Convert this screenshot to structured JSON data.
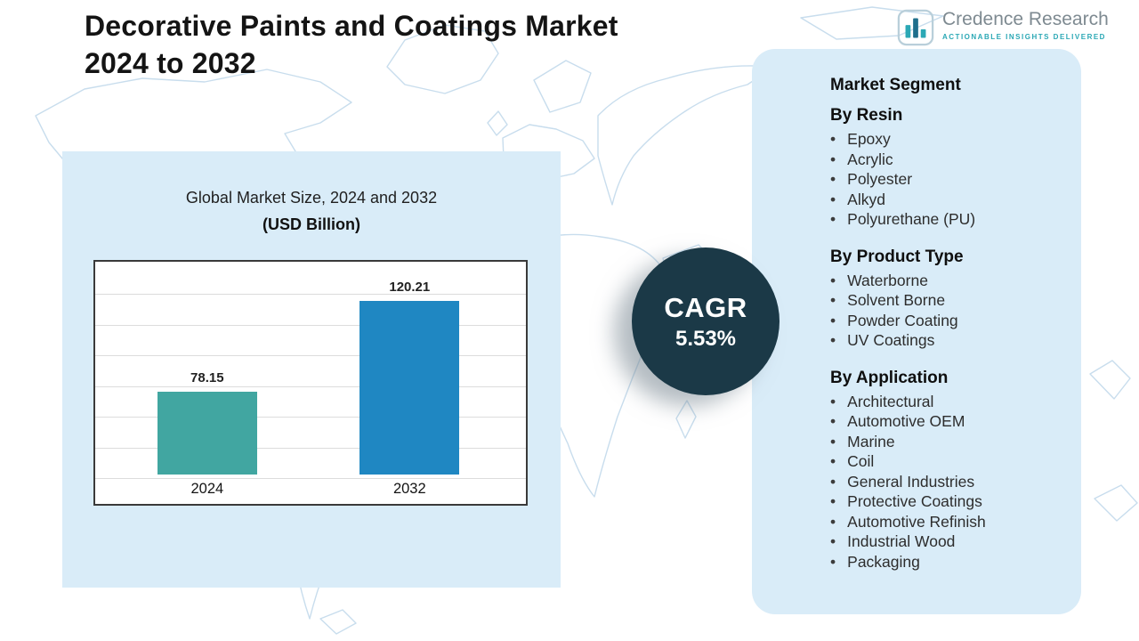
{
  "page": {
    "title_line1": "Decorative Paints and Coatings Market",
    "title_line2": "2024 to 2032"
  },
  "logo": {
    "name": "Credence Research",
    "tagline": "Actionable Insights Delivered",
    "icon": "bar-chart-icon"
  },
  "chart_data": {
    "type": "bar",
    "title": "Global Market Size, 2024 and 2032",
    "subtitle": "(USD Billion)",
    "categories": [
      "2024",
      "2032"
    ],
    "values": [
      78.15,
      120.21
    ],
    "value_labels": [
      "78.15",
      "120.21"
    ],
    "bar_colors": [
      "#41a6a1",
      "#1f87c2"
    ],
    "ylim": [
      40,
      140
    ],
    "grid": true,
    "legend": "none"
  },
  "cagr": {
    "label": "CAGR",
    "value": "5.53%"
  },
  "segments": {
    "header": "Market Segment",
    "groups": [
      {
        "title": "By Resin",
        "items": [
          "Epoxy",
          "Acrylic",
          "Polyester",
          "Alkyd",
          "Polyurethane (PU)"
        ]
      },
      {
        "title": "By Product Type",
        "items": [
          "Waterborne",
          "Solvent Borne",
          "Powder Coating",
          "UV Coatings"
        ]
      },
      {
        "title": "By Application",
        "items": [
          "Architectural",
          "Automotive OEM",
          "Marine",
          "Coil",
          "General Industries",
          "Protective Coatings",
          "Automotive Refinish",
          "Industrial Wood",
          "Packaging"
        ]
      }
    ]
  },
  "colors": {
    "bar_2024": "#41a6a1",
    "bar_2032": "#1f87c2",
    "cagr_circle": "#1b3947",
    "panel_bg": "#d9ecf8",
    "map_line": "#c8dded",
    "logo_teal": "#2ba8b5",
    "logo_gray": "#7e8a91"
  }
}
